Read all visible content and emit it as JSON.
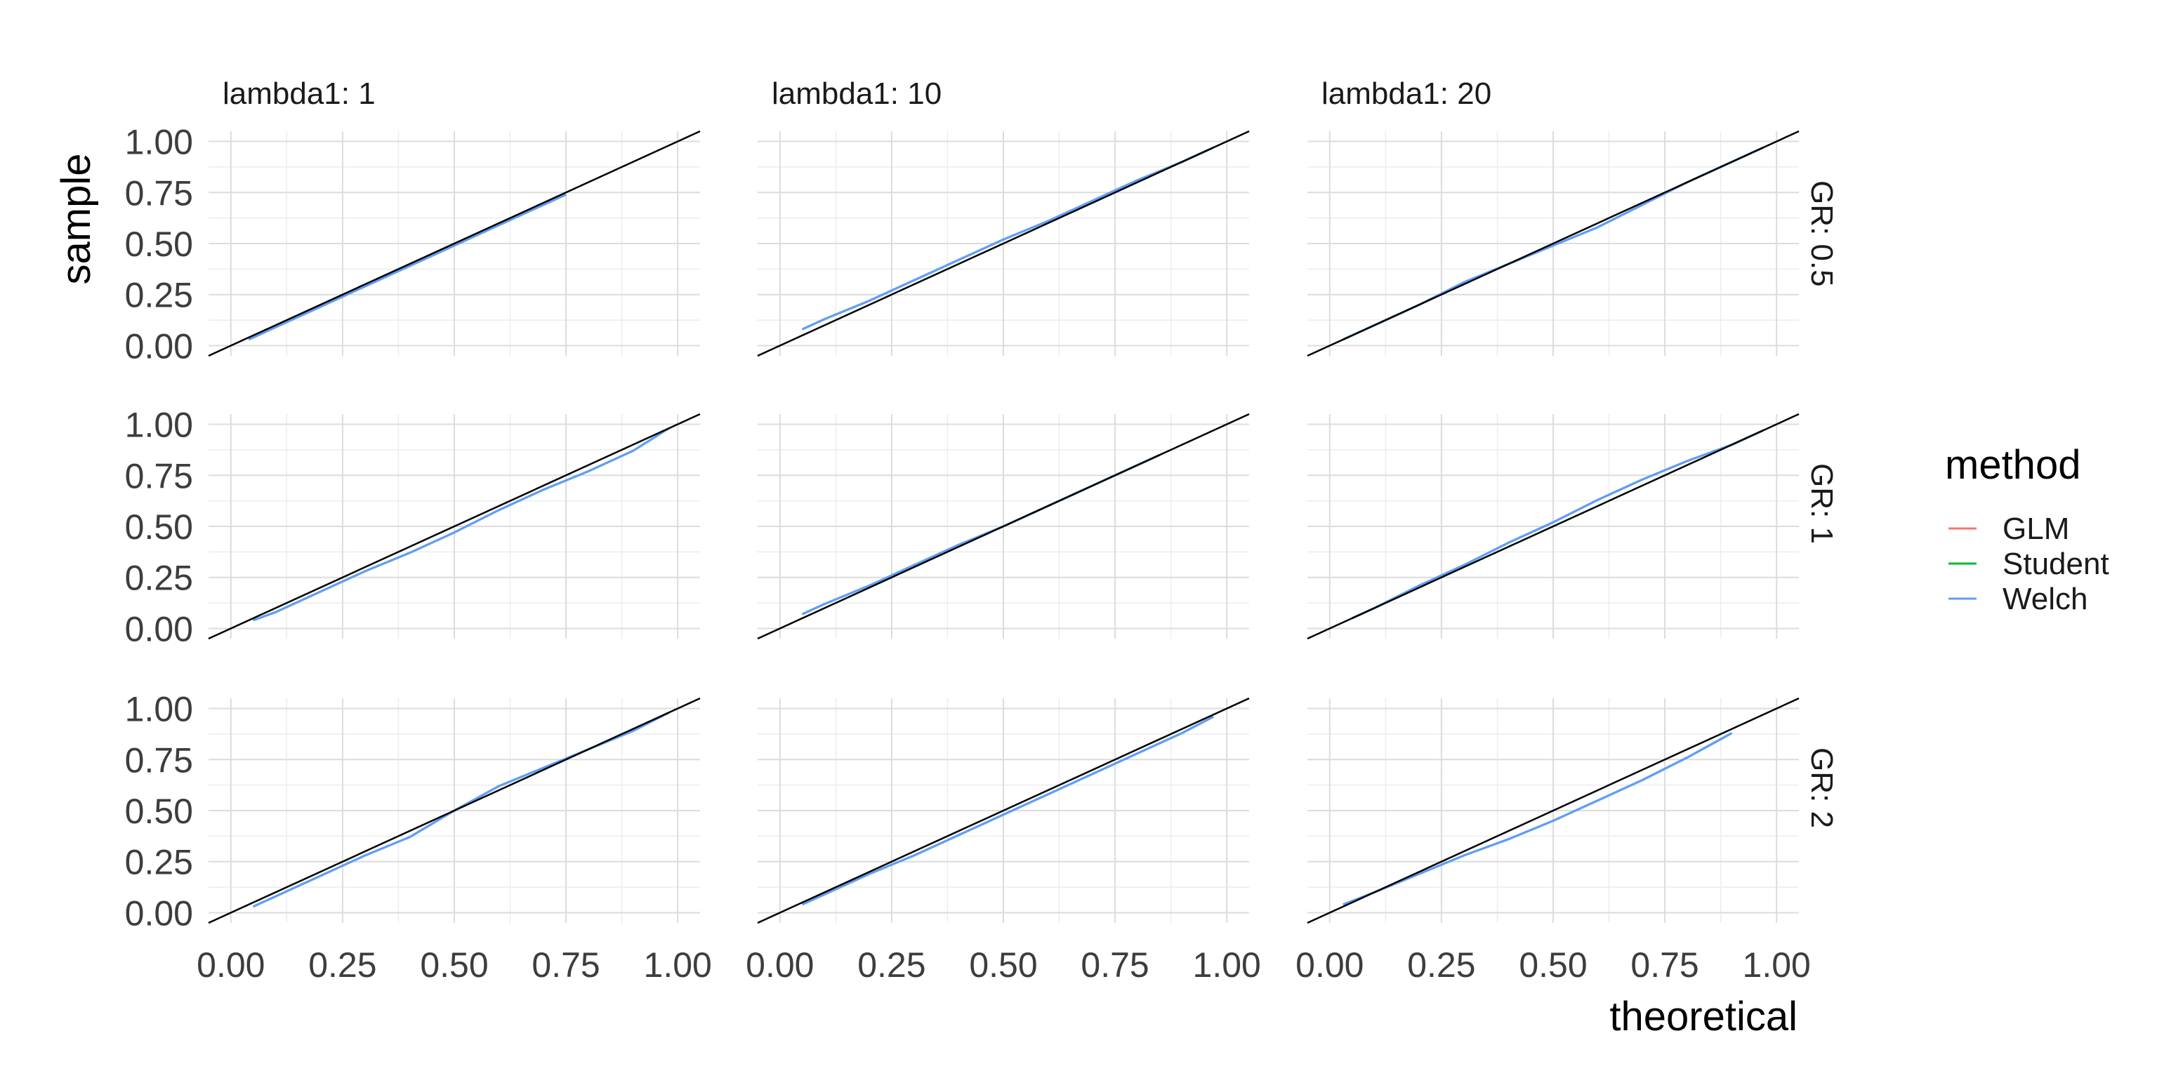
{
  "chart_data": {
    "type": "line",
    "xlabel": "theoretical",
    "ylabel": "sample",
    "xlim": [
      0,
      1
    ],
    "ylim": [
      0,
      1
    ],
    "x_ticks": [
      "0.00",
      "0.25",
      "0.50",
      "0.75",
      "1.00"
    ],
    "y_ticks": [
      "0.00",
      "0.25",
      "0.50",
      "0.75",
      "1.00"
    ],
    "grid": true,
    "reference_line": {
      "slope": 1,
      "intercept": 0,
      "color": "#000000"
    },
    "legend": {
      "title": "method",
      "position": "right",
      "entries": [
        {
          "name": "GLM",
          "color": "#F8766D"
        },
        {
          "name": "Student",
          "color": "#00BA38"
        },
        {
          "name": "Welch",
          "color": "#619CFF"
        }
      ]
    },
    "col_facets": [
      "lambda1: 1",
      "lambda1: 10",
      "lambda1: 20"
    ],
    "row_facets": [
      "GR: 0.5",
      "GR: 1",
      "GR: 2"
    ],
    "panels": [
      {
        "col": "lambda1: 1",
        "row": "GR: 0.5",
        "x": [
          0.04,
          0.1,
          0.2,
          0.3,
          0.4,
          0.5,
          0.6,
          0.7,
          0.75
        ],
        "y": [
          0.03,
          0.09,
          0.19,
          0.29,
          0.39,
          0.49,
          0.59,
          0.69,
          0.74
        ]
      },
      {
        "col": "lambda1: 10",
        "row": "GR: 0.5",
        "x": [
          0.05,
          0.1,
          0.2,
          0.3,
          0.4,
          0.5,
          0.6,
          0.7,
          0.8,
          0.9,
          0.97
        ],
        "y": [
          0.08,
          0.13,
          0.22,
          0.32,
          0.42,
          0.52,
          0.61,
          0.71,
          0.81,
          0.9,
          0.97
        ]
      },
      {
        "col": "lambda1: 20",
        "row": "GR: 0.5",
        "x": [
          0.03,
          0.1,
          0.2,
          0.3,
          0.4,
          0.5,
          0.6,
          0.7,
          0.8,
          0.9,
          0.97
        ],
        "y": [
          0.03,
          0.1,
          0.2,
          0.31,
          0.4,
          0.49,
          0.58,
          0.69,
          0.8,
          0.9,
          0.97
        ]
      },
      {
        "col": "lambda1: 1",
        "row": "GR: 1",
        "x": [
          0.05,
          0.1,
          0.2,
          0.3,
          0.4,
          0.5,
          0.6,
          0.7,
          0.8,
          0.9,
          0.98
        ],
        "y": [
          0.04,
          0.08,
          0.18,
          0.28,
          0.37,
          0.47,
          0.58,
          0.68,
          0.77,
          0.87,
          0.98
        ]
      },
      {
        "col": "lambda1: 10",
        "row": "GR: 1",
        "x": [
          0.05,
          0.1,
          0.2,
          0.3,
          0.4,
          0.5,
          0.6,
          0.7,
          0.8,
          0.85
        ],
        "y": [
          0.07,
          0.12,
          0.21,
          0.31,
          0.41,
          0.5,
          0.6,
          0.7,
          0.8,
          0.85
        ]
      },
      {
        "col": "lambda1: 20",
        "row": "GR: 1",
        "x": [
          0.05,
          0.1,
          0.2,
          0.3,
          0.4,
          0.5,
          0.6,
          0.7,
          0.8,
          0.9,
          0.97
        ],
        "y": [
          0.05,
          0.1,
          0.21,
          0.31,
          0.42,
          0.52,
          0.63,
          0.73,
          0.82,
          0.9,
          0.97
        ]
      },
      {
        "col": "lambda1: 1",
        "row": "GR: 2",
        "x": [
          0.05,
          0.1,
          0.2,
          0.3,
          0.4,
          0.5,
          0.6,
          0.7,
          0.8,
          0.9,
          0.98
        ],
        "y": [
          0.03,
          0.08,
          0.18,
          0.28,
          0.37,
          0.5,
          0.62,
          0.71,
          0.8,
          0.89,
          0.98
        ]
      },
      {
        "col": "lambda1: 10",
        "row": "GR: 2",
        "x": [
          0.05,
          0.1,
          0.2,
          0.3,
          0.4,
          0.5,
          0.6,
          0.7,
          0.8,
          0.9,
          0.97
        ],
        "y": [
          0.04,
          0.09,
          0.19,
          0.28,
          0.38,
          0.48,
          0.58,
          0.68,
          0.78,
          0.88,
          0.96
        ]
      },
      {
        "col": "lambda1: 20",
        "row": "GR: 2",
        "x": [
          0.03,
          0.1,
          0.2,
          0.3,
          0.4,
          0.5,
          0.6,
          0.7,
          0.8,
          0.9
        ],
        "y": [
          0.04,
          0.1,
          0.19,
          0.28,
          0.36,
          0.45,
          0.55,
          0.65,
          0.76,
          0.88
        ]
      }
    ]
  }
}
